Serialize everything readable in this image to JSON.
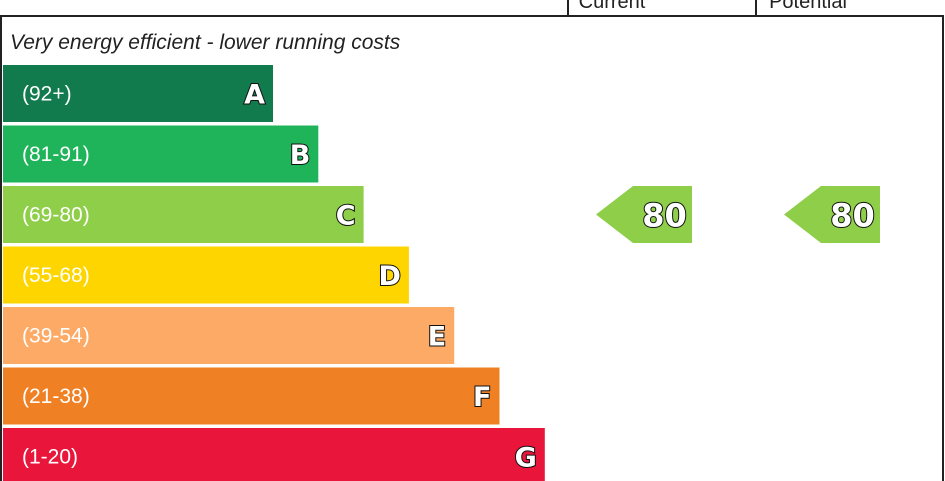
{
  "chart_data": {
    "type": "bar",
    "title": "",
    "subtitle": "Very energy efficient - lower running costs",
    "columns": {
      "current": "Current",
      "potential": "Potential"
    },
    "bands": [
      {
        "letter": "A",
        "range": "(92+)",
        "color": "#127b4e",
        "level": 1
      },
      {
        "letter": "B",
        "range": "(81-91)",
        "color": "#20b45a",
        "level": 2
      },
      {
        "letter": "C",
        "range": "(69-80)",
        "color": "#8ece48",
        "level": 3
      },
      {
        "letter": "D",
        "range": "(55-68)",
        "color": "#ffd500",
        "level": 4
      },
      {
        "letter": "E",
        "range": "(39-54)",
        "color": "#fcaa65",
        "level": 5
      },
      {
        "letter": "F",
        "range": "(21-38)",
        "color": "#ef8023",
        "level": 6
      },
      {
        "letter": "G",
        "range": "(1-20)",
        "color": "#e9153b",
        "level": 7
      }
    ],
    "current": {
      "value": 80,
      "band": "C",
      "color": "#8ece48"
    },
    "potential": {
      "value": 80,
      "band": "C",
      "color": "#8ece48"
    }
  }
}
